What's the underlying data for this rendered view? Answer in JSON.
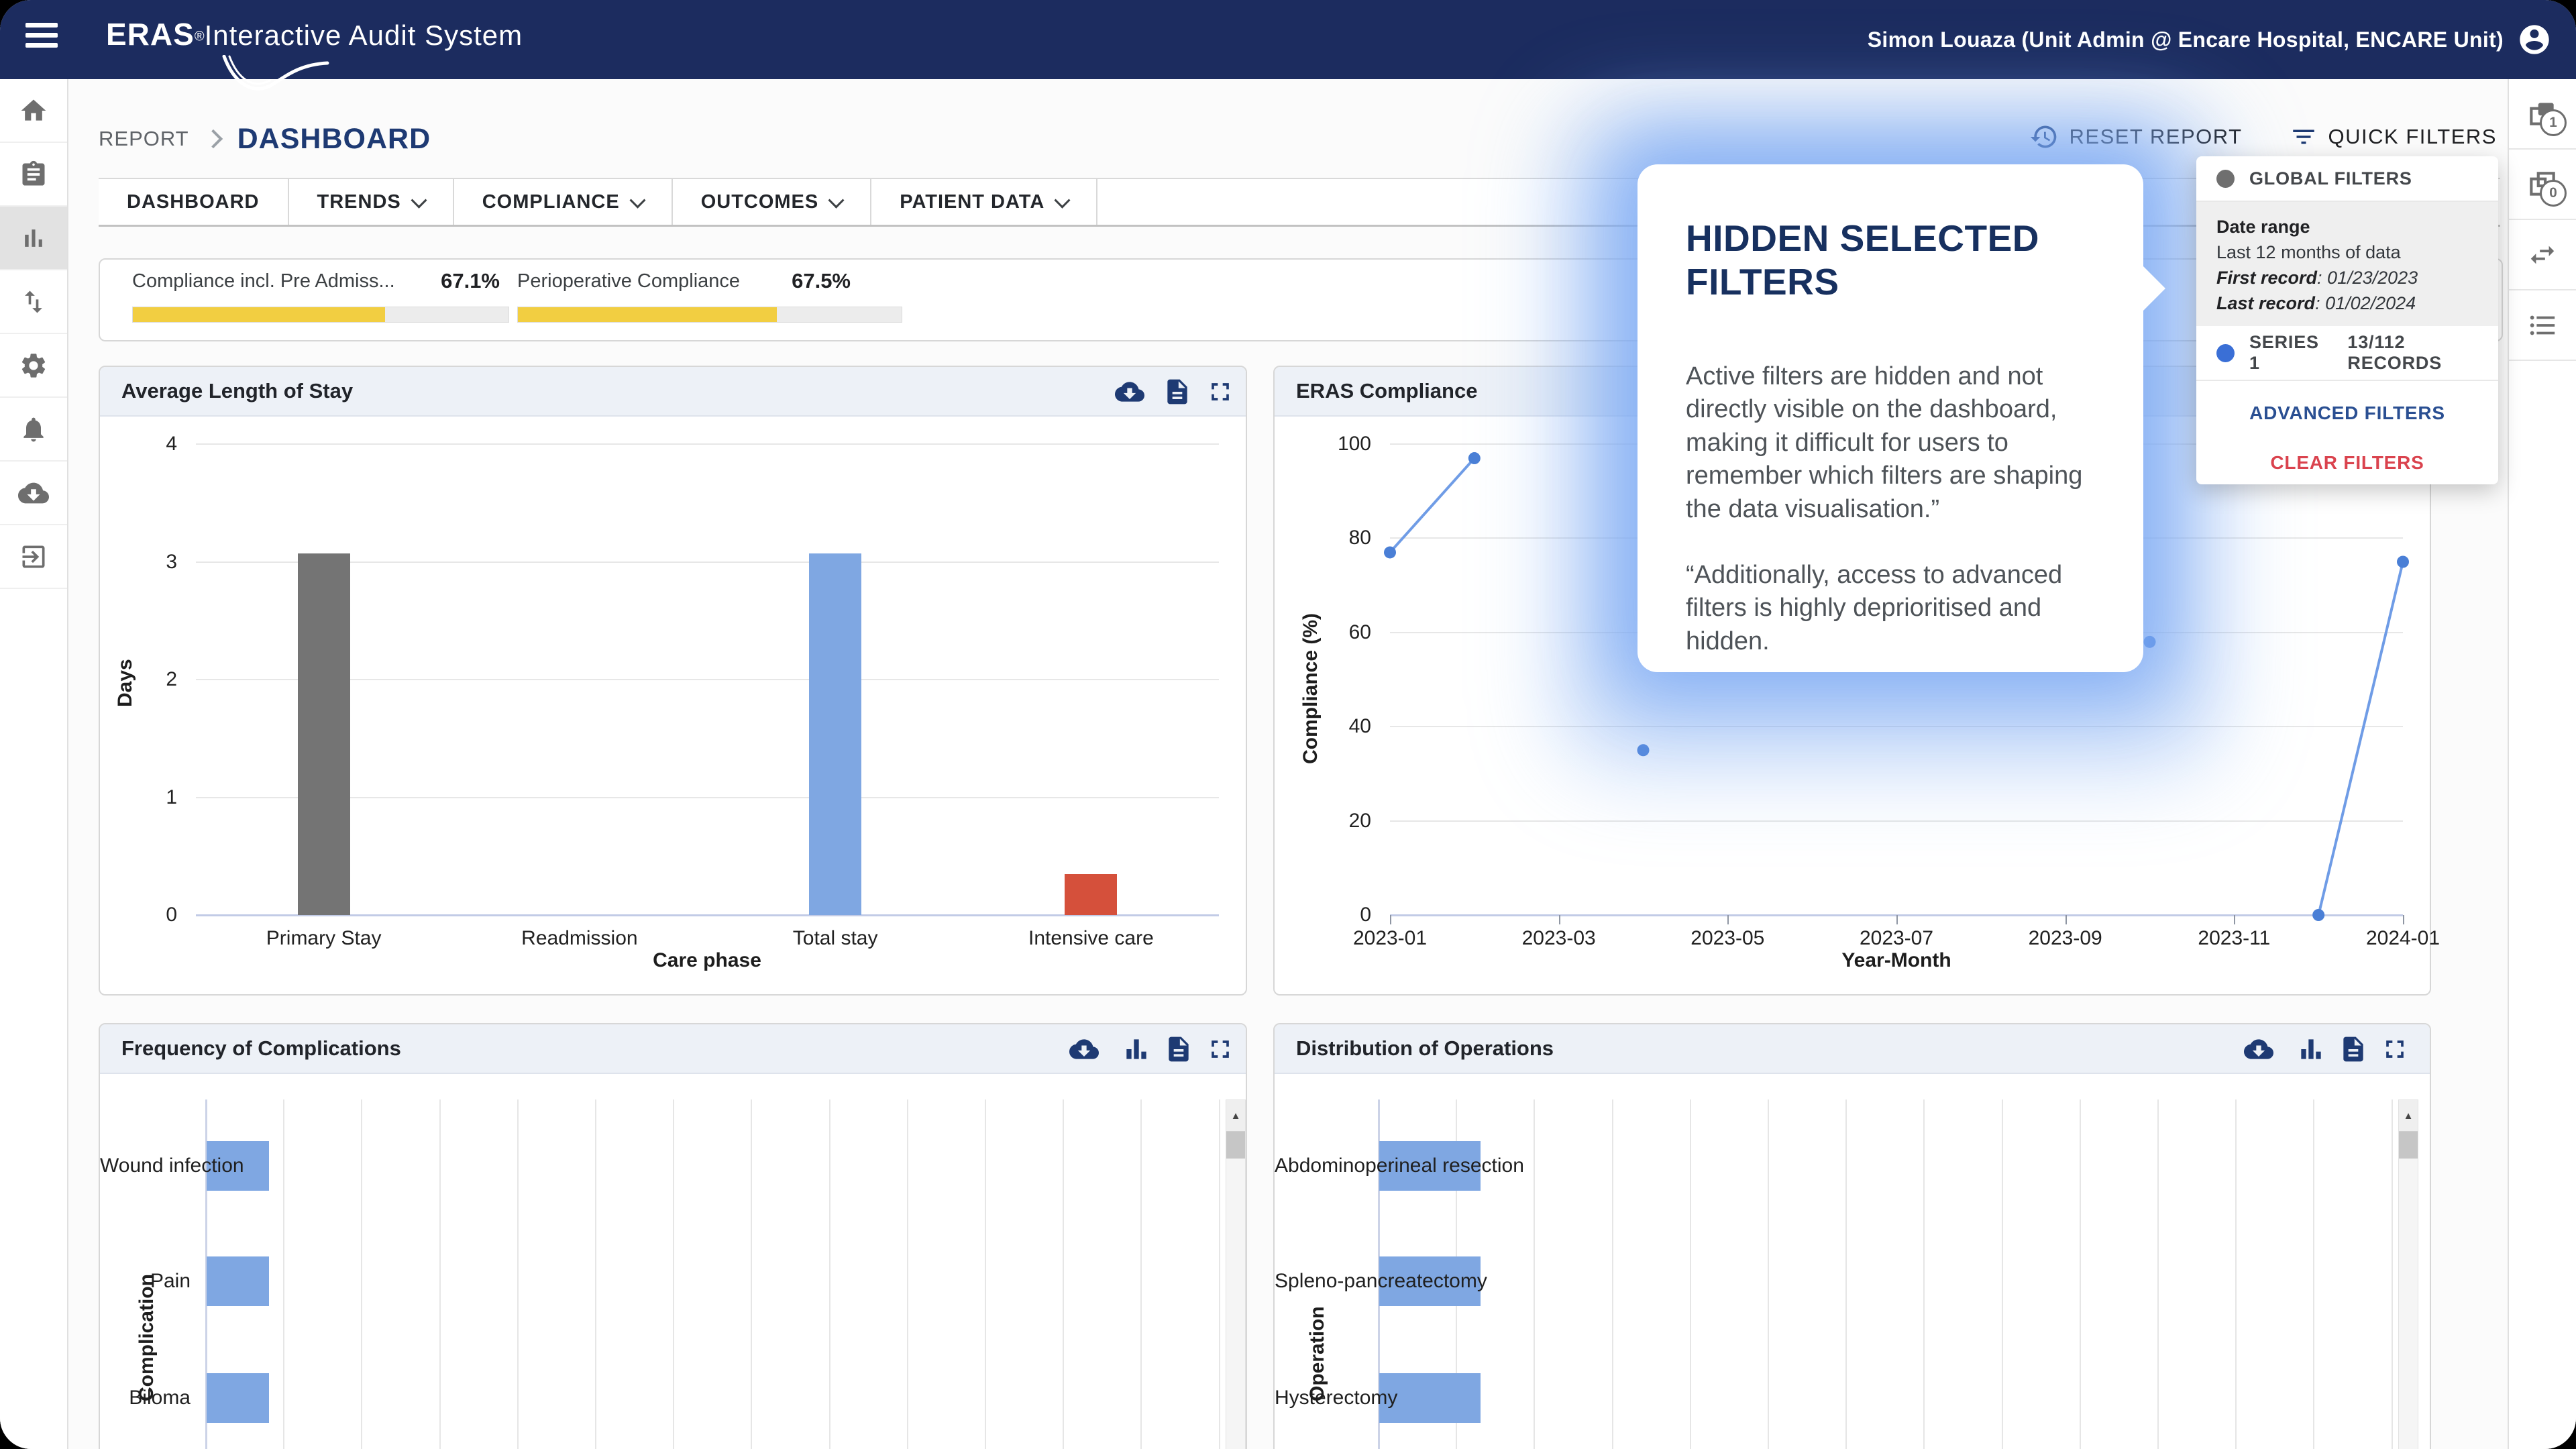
{
  "app": {
    "brand_eras": "ERAS",
    "brand_reg": "®",
    "brand_rest": "Interactive Audit System",
    "user": "Simon Louaza (Unit Admin @ Encare Hospital, ENCARE Unit)"
  },
  "breadcrumb": {
    "parent": "REPORT",
    "current": "DASHBOARD"
  },
  "toolbar": {
    "reset_label": "RESET REPORT",
    "quick_filters_label": "QUICK FILTERS"
  },
  "tabs": [
    {
      "label": "DASHBOARD",
      "dropdown": false
    },
    {
      "label": "TRENDS",
      "dropdown": true
    },
    {
      "label": "COMPLIANCE",
      "dropdown": true
    },
    {
      "label": "OUTCOMES",
      "dropdown": true
    },
    {
      "label": "PATIENT DATA",
      "dropdown": true
    }
  ],
  "kpis": [
    {
      "label": "Compliance incl. Pre Admiss...",
      "value": "67.1%",
      "percent": 67.1
    },
    {
      "label": "Perioperative Compliance",
      "value": "67.5%",
      "percent": 67.5
    }
  ],
  "kpi_bar_color": "#f2ce41",
  "filters_panel": {
    "global_title": "GLOBAL FILTERS",
    "global_dot_color": "#6f6f6f",
    "date_range_label": "Date range",
    "date_range_value": "Last 12 months of data",
    "first_record_label": "First record",
    "first_record_value": ": 01/23/2023",
    "last_record_label": "Last record",
    "last_record_value": ": 01/02/2024",
    "series_label": "SERIES 1",
    "series_records": "13/112 RECORDS",
    "series_dot_color": "#3a6fd6",
    "advanced_label": "ADVANCED FILTERS",
    "clear_label": "CLEAR FILTERS"
  },
  "callout": {
    "title": "HIDDEN SELECTED FILTERS",
    "body1": "Active filters are hidden and not directly visible on the dashboard, making it difficult for users to remember which filters are shaping the data visualisation.”",
    "body2": "“Additionally, access to advanced filters is highly deprioritised and hidden."
  },
  "sidebar_left": {
    "selected_index": 2,
    "items": [
      "home",
      "clipboard",
      "bar-chart",
      "swap-vertical",
      "settings-gear",
      "notifications-bell",
      "cloud-download",
      "exit-to-app"
    ]
  },
  "sidebar_right": {
    "items": [
      {
        "icon": "layers-filled",
        "badge": "1"
      },
      {
        "icon": "layers-outline",
        "badge": "0"
      },
      {
        "icon": "swap-horizontal",
        "badge": ""
      },
      {
        "icon": "list",
        "badge": ""
      }
    ]
  },
  "scroll_up_glyph": "▲",
  "chart_data": [
    {
      "id": "los",
      "type": "bar",
      "title": "Average Length of Stay",
      "xlabel": "Care phase",
      "ylabel": "Days",
      "ylim": [
        0,
        4
      ],
      "yticks": [
        0,
        1,
        2,
        3,
        4
      ],
      "categories": [
        "Primary Stay",
        "Readmission",
        "Total stay",
        "Intensive care"
      ],
      "values": [
        3.07,
        0,
        3.07,
        0.35
      ],
      "colors": [
        "#747474",
        "#b0b0b0",
        "#7fa7e2",
        "#d5503b"
      ],
      "grid": true,
      "legend": false
    },
    {
      "id": "compliance",
      "type": "line",
      "title": "ERAS Compliance",
      "xlabel": "Year-Month",
      "ylabel": "Compliance (%)",
      "ylim": [
        0,
        100
      ],
      "yticks": [
        0,
        20,
        40,
        60,
        80,
        100
      ],
      "xticks": [
        "2023-01",
        "2023-03",
        "2023-05",
        "2023-07",
        "2023-09",
        "2023-11",
        "2024-01"
      ],
      "x_domain_months": [
        0,
        12
      ],
      "points": [
        {
          "month": 0,
          "value": 77
        },
        {
          "month": 1,
          "value": 97
        },
        {
          "month": 3,
          "value": 35
        },
        {
          "month": 9,
          "value": 58
        },
        {
          "month": 11,
          "value": 0
        },
        {
          "month": 12,
          "value": 75
        }
      ],
      "segments": [
        [
          0,
          1
        ],
        [
          4,
          5
        ]
      ],
      "line_color": "#6f9ce6",
      "point_color": "#4a7fd6",
      "grid": true,
      "legend": false
    },
    {
      "id": "complications",
      "type": "bar-horizontal",
      "title": "Frequency of Complications",
      "ylabel": "Complication",
      "categories": [
        "Wound infection",
        "Pain",
        "Biloma"
      ],
      "values": [
        0.8,
        0.8,
        0.8
      ],
      "xlim": [
        0,
        13
      ],
      "gridline_step": 1,
      "bar_color": "#7fa7e2",
      "note": "x-axis tick labels cut off below viewport; values estimated from gridlines",
      "scrollable": true
    },
    {
      "id": "operations",
      "type": "bar-horizontal",
      "title": "Distribution of Operations",
      "ylabel": "Operation",
      "categories": [
        "Abdominoperineal resection",
        "Spleno-pancreatectomy",
        "Hysterectomy"
      ],
      "values": [
        1.3,
        1.3,
        1.3
      ],
      "xlim": [
        0,
        13
      ],
      "gridline_step": 1,
      "bar_color": "#7fa7e2",
      "note": "x-axis tick labels cut off below viewport; values estimated from gridlines",
      "scrollable": true
    }
  ]
}
